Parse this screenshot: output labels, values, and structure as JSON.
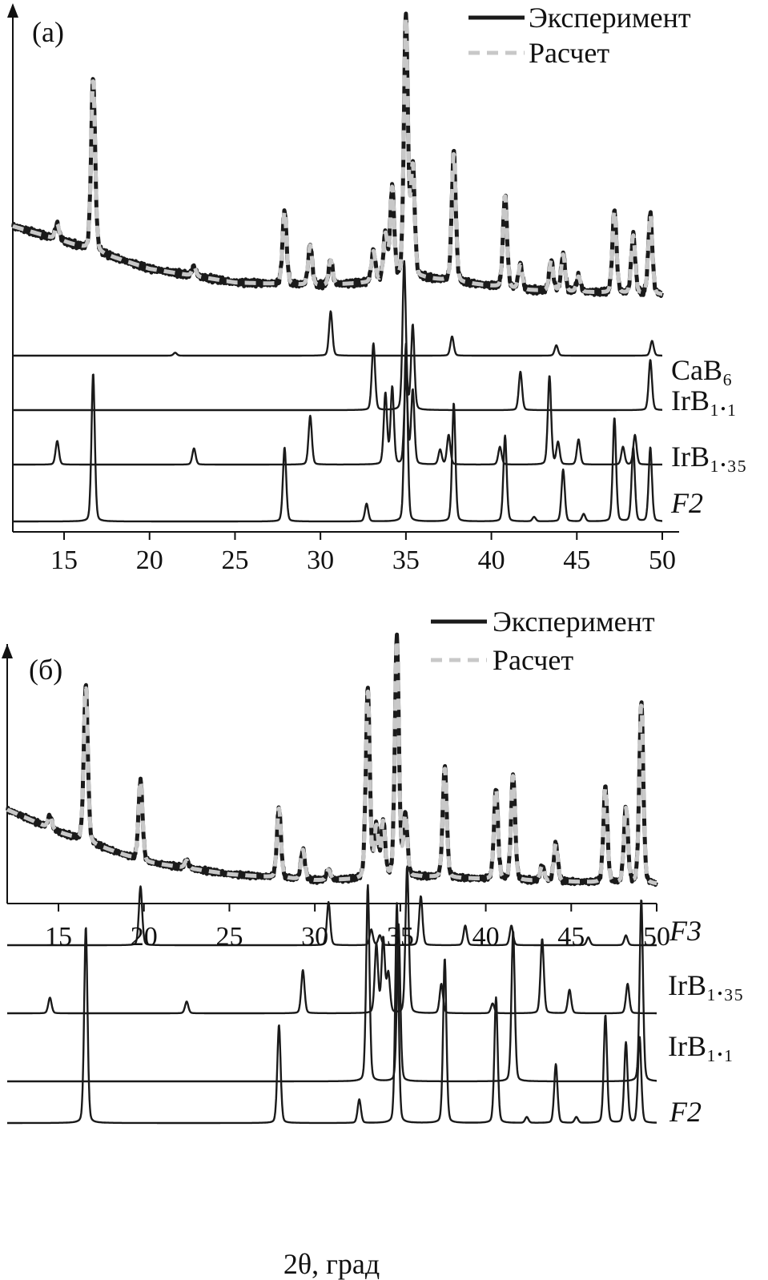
{
  "chart_data": [
    {
      "type": "line",
      "panel": "(a)",
      "panel_label": "(а)",
      "xlim": [
        12,
        50
      ],
      "xticks": [
        15,
        20,
        25,
        30,
        35,
        40,
        45,
        50
      ],
      "legend": {
        "experiment": "Эксперимент",
        "calculated": "Расчет"
      },
      "pattern": {
        "baseline": [
          [
            12,
            0.27
          ],
          [
            15,
            0.22
          ],
          [
            20,
            0.13
          ],
          [
            25,
            0.085
          ],
          [
            30,
            0.075
          ],
          [
            33,
            0.085
          ],
          [
            36,
            0.1
          ],
          [
            42,
            0.06
          ],
          [
            50,
            0.045
          ]
        ],
        "peaks": [
          {
            "x": 14.6,
            "h": 0.05
          },
          {
            "x": 16.7,
            "h": 0.56
          },
          {
            "x": 22.6,
            "h": 0.03
          },
          {
            "x": 27.9,
            "h": 0.24
          },
          {
            "x": 29.4,
            "h": 0.13
          },
          {
            "x": 30.6,
            "h": 0.08
          },
          {
            "x": 33.1,
            "h": 0.1
          },
          {
            "x": 33.8,
            "h": 0.15
          },
          {
            "x": 34.2,
            "h": 0.3
          },
          {
            "x": 35.0,
            "h": 0.85
          },
          {
            "x": 35.4,
            "h": 0.36
          },
          {
            "x": 37.8,
            "h": 0.42
          },
          {
            "x": 40.8,
            "h": 0.3
          },
          {
            "x": 41.7,
            "h": 0.08
          },
          {
            "x": 43.5,
            "h": 0.1
          },
          {
            "x": 44.2,
            "h": 0.12
          },
          {
            "x": 45.1,
            "h": 0.05
          },
          {
            "x": 47.2,
            "h": 0.27
          },
          {
            "x": 48.3,
            "h": 0.19
          },
          {
            "x": 49.3,
            "h": 0.26
          }
        ]
      },
      "phases": [
        {
          "name": "CaB₆",
          "peaks": [
            {
              "x": 21.5,
              "h": 0.02
            },
            {
              "x": 30.6,
              "h": 0.3
            },
            {
              "x": 37.7,
              "h": 0.13
            },
            {
              "x": 43.8,
              "h": 0.07
            },
            {
              "x": 49.4,
              "h": 0.1
            }
          ]
        },
        {
          "name": "IrB₁.₁",
          "peaks": [
            {
              "x": 33.1,
              "h": 0.45
            },
            {
              "x": 34.9,
              "h": 1.0
            },
            {
              "x": 35.4,
              "h": 0.57
            },
            {
              "x": 41.7,
              "h": 0.26
            },
            {
              "x": 49.3,
              "h": 0.34
            }
          ]
        },
        {
          "name": "IrB₁.₃₅",
          "peaks": [
            {
              "x": 14.6,
              "h": 0.16
            },
            {
              "x": 22.6,
              "h": 0.11
            },
            {
              "x": 29.4,
              "h": 0.33
            },
            {
              "x": 33.8,
              "h": 0.48
            },
            {
              "x": 34.2,
              "h": 0.52
            },
            {
              "x": 35.0,
              "h": 0.6
            },
            {
              "x": 35.4,
              "h": 0.5
            },
            {
              "x": 37.0,
              "h": 0.1
            },
            {
              "x": 37.5,
              "h": 0.2
            },
            {
              "x": 40.5,
              "h": 0.12
            },
            {
              "x": 43.4,
              "h": 0.6
            },
            {
              "x": 43.9,
              "h": 0.15
            },
            {
              "x": 45.1,
              "h": 0.17
            },
            {
              "x": 47.7,
              "h": 0.12
            },
            {
              "x": 48.4,
              "h": 0.2
            }
          ]
        },
        {
          "name": "F2",
          "peaks": [
            {
              "x": 16.7,
              "h": 1.0
            },
            {
              "x": 27.9,
              "h": 0.5
            },
            {
              "x": 32.7,
              "h": 0.12
            },
            {
              "x": 35.0,
              "h": 1.2
            },
            {
              "x": 37.8,
              "h": 0.8
            },
            {
              "x": 40.8,
              "h": 0.58
            },
            {
              "x": 42.5,
              "h": 0.03
            },
            {
              "x": 44.2,
              "h": 0.35
            },
            {
              "x": 45.4,
              "h": 0.05
            },
            {
              "x": 47.2,
              "h": 0.7
            },
            {
              "x": 48.3,
              "h": 0.5
            },
            {
              "x": 49.3,
              "h": 0.5
            }
          ]
        }
      ]
    },
    {
      "type": "line",
      "panel": "(b)",
      "panel_label": "(б)",
      "xlim": [
        12,
        50
      ],
      "xticks": [
        15,
        20,
        25,
        30,
        35,
        40,
        45,
        50
      ],
      "xlabel": "2θ, град",
      "legend": {
        "experiment": "Эксперимент",
        "calculated": "Расчет"
      },
      "pattern": {
        "baseline": [
          [
            12,
            0.32
          ],
          [
            15,
            0.23
          ],
          [
            20,
            0.11
          ],
          [
            25,
            0.06
          ],
          [
            30,
            0.035
          ],
          [
            33,
            0.04
          ],
          [
            36,
            0.05
          ],
          [
            42,
            0.035
          ],
          [
            50,
            0.02
          ]
        ],
        "peaks": [
          {
            "x": 14.5,
            "h": 0.05
          },
          {
            "x": 16.6,
            "h": 0.62
          },
          {
            "x": 19.8,
            "h": 0.32
          },
          {
            "x": 22.5,
            "h": 0.03
          },
          {
            "x": 27.9,
            "h": 0.28
          },
          {
            "x": 29.3,
            "h": 0.12
          },
          {
            "x": 30.8,
            "h": 0.04
          },
          {
            "x": 33.1,
            "h": 0.75
          },
          {
            "x": 33.6,
            "h": 0.2
          },
          {
            "x": 34.0,
            "h": 0.22
          },
          {
            "x": 34.8,
            "h": 0.95
          },
          {
            "x": 35.3,
            "h": 0.24
          },
          {
            "x": 37.6,
            "h": 0.44
          },
          {
            "x": 40.6,
            "h": 0.36
          },
          {
            "x": 41.6,
            "h": 0.42
          },
          {
            "x": 43.3,
            "h": 0.06
          },
          {
            "x": 44.1,
            "h": 0.15
          },
          {
            "x": 47.0,
            "h": 0.38
          },
          {
            "x": 48.2,
            "h": 0.3
          },
          {
            "x": 49.1,
            "h": 0.72
          }
        ]
      },
      "phases": [
        {
          "name": "F3",
          "peaks": [
            {
              "x": 19.8,
              "h": 0.3
            },
            {
              "x": 30.8,
              "h": 0.22
            },
            {
              "x": 33.3,
              "h": 0.08
            },
            {
              "x": 33.8,
              "h": 0.05
            },
            {
              "x": 36.2,
              "h": 0.25
            },
            {
              "x": 38.8,
              "h": 0.1
            },
            {
              "x": 41.5,
              "h": 0.1
            },
            {
              "x": 46.0,
              "h": 0.04
            },
            {
              "x": 48.2,
              "h": 0.05
            }
          ]
        },
        {
          "name": "IrB₁.₃₅",
          "peaks": [
            {
              "x": 14.5,
              "h": 0.08
            },
            {
              "x": 22.5,
              "h": 0.06
            },
            {
              "x": 29.3,
              "h": 0.22
            },
            {
              "x": 33.6,
              "h": 0.35
            },
            {
              "x": 34.0,
              "h": 0.38
            },
            {
              "x": 34.3,
              "h": 0.2
            },
            {
              "x": 35.4,
              "h": 0.75
            },
            {
              "x": 37.4,
              "h": 0.15
            },
            {
              "x": 40.4,
              "h": 0.05
            },
            {
              "x": 43.3,
              "h": 0.38
            },
            {
              "x": 44.9,
              "h": 0.12
            },
            {
              "x": 48.3,
              "h": 0.15
            }
          ]
        },
        {
          "name": "IrB₁.₁",
          "peaks": [
            {
              "x": 33.1,
              "h": 1.0
            },
            {
              "x": 34.9,
              "h": 0.8
            },
            {
              "x": 41.6,
              "h": 0.77
            },
            {
              "x": 49.1,
              "h": 0.93
            }
          ]
        },
        {
          "name": "F2",
          "peaks": [
            {
              "x": 16.6,
              "h": 1.0
            },
            {
              "x": 27.9,
              "h": 0.5
            },
            {
              "x": 32.6,
              "h": 0.12
            },
            {
              "x": 34.8,
              "h": 1.12
            },
            {
              "x": 37.6,
              "h": 0.84
            },
            {
              "x": 40.6,
              "h": 0.64
            },
            {
              "x": 42.4,
              "h": 0.03
            },
            {
              "x": 44.1,
              "h": 0.3
            },
            {
              "x": 45.3,
              "h": 0.03
            },
            {
              "x": 47.0,
              "h": 0.55
            },
            {
              "x": 48.2,
              "h": 0.41
            },
            {
              "x": 49.0,
              "h": 0.44
            }
          ]
        }
      ]
    }
  ]
}
